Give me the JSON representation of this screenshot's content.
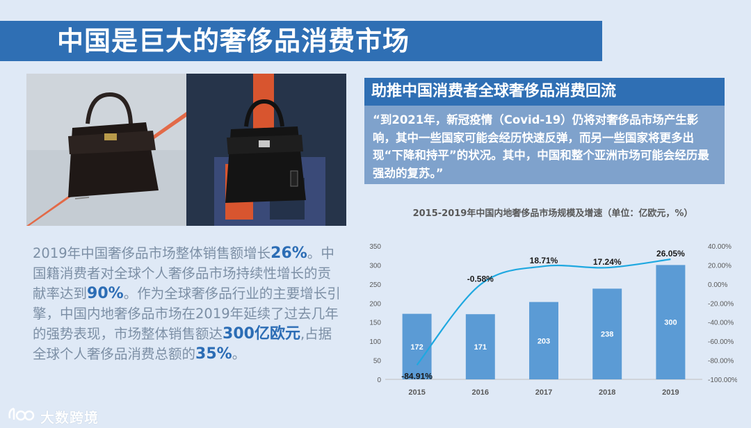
{
  "title": "中国是巨大的奢侈品消费市场",
  "subtitle": "助推中国消费者全球奢侈品消费回流",
  "quote": "“到2021年，新冠疫情（Covid-19）仍将对奢侈品市场产生影响，其中一些国家可能会经历快速反弹，而另一些国家将更多出现“下降和持平”的状况。其中，中国和整个亚洲市场可能会经历最强劲的复苏。”",
  "lead": {
    "p1": "2019年中国奢侈品市场整体销售额增长",
    "h1": "26%",
    "p2": "。中国籍消费者对全球个人奢侈品市场持续性增长的贡献率达到",
    "h2": "90%",
    "p3": "。作为全球奢侈品行业的主要增长引擎，中国内地奢侈品市场在2019年延续了过去几年的强势表现，市场整体销售额达",
    "h3": "300亿欧元",
    "p4": ",占据全球个人奢侈品消费总额的",
    "h4": "35%",
    "p5": "。"
  },
  "brand": {
    "name": "大数跨境",
    "icon": "brand-logo-icon"
  },
  "colors": {
    "accent": "#2f6fb4",
    "bar": "#5b9bd5",
    "line": "#1fa8e0"
  },
  "chart_data": {
    "type": "bar",
    "title": "2015-2019年中国内地奢侈品市场规模及增速（单位：亿欧元，%）",
    "categories": [
      "2015",
      "2016",
      "2017",
      "2018",
      "2019"
    ],
    "series": [
      {
        "kind": "bar",
        "values": [
          172,
          171,
          203,
          238,
          300
        ],
        "labels": [
          "172",
          "171",
          "203",
          "238",
          "300"
        ]
      },
      {
        "kind": "line",
        "values": [
          -84.91,
          -0.58,
          18.71,
          17.24,
          26.05
        ],
        "labels": [
          "-84.91%",
          "-0.58%",
          "18.71%",
          "17.24%",
          "26.05%"
        ]
      }
    ],
    "ylim": [
      0,
      350
    ],
    "y_ticks": [
      "0",
      "50",
      "100",
      "150",
      "200",
      "250",
      "300",
      "350"
    ],
    "y2lim": [
      -100,
      40
    ],
    "y2_ticks": [
      "-100.00%",
      "-80.00%",
      "-60.00%",
      "-40.00%",
      "-20.00%",
      "0.00%",
      "20.00%",
      "40.00%"
    ],
    "grid": false,
    "legend": "none"
  }
}
